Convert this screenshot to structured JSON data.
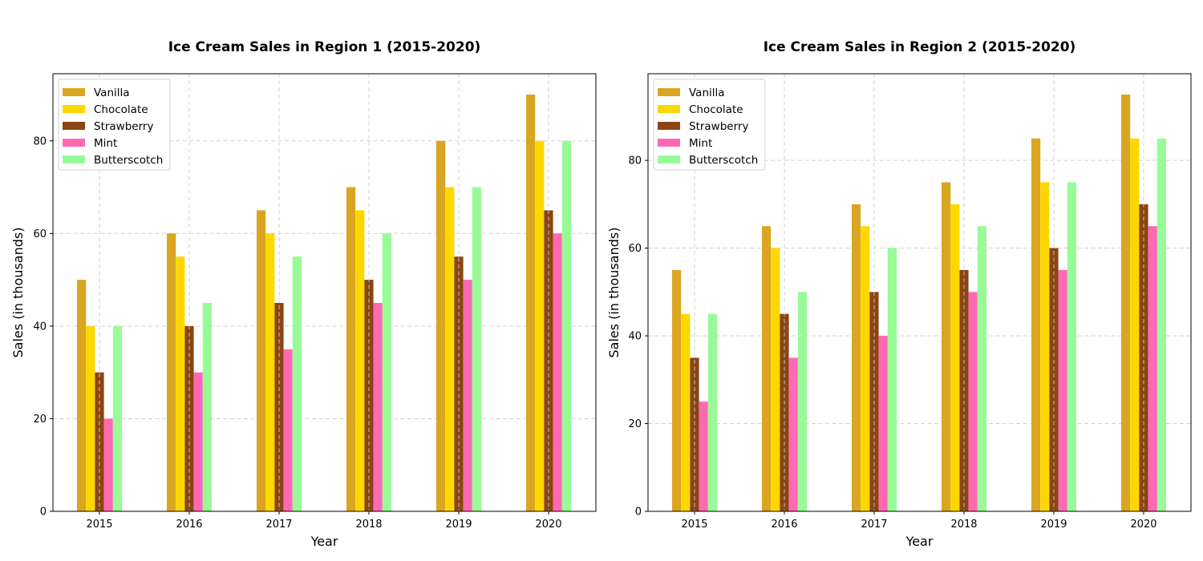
{
  "chart_data": [
    {
      "type": "bar",
      "title": "Ice Cream Sales in Region 1 (2015-2020)",
      "xlabel": "Year",
      "ylabel": "Sales (in thousands)",
      "categories": [
        "2015",
        "2016",
        "2017",
        "2018",
        "2019",
        "2020"
      ],
      "ylim": [
        0,
        94.5
      ],
      "yticks": [
        0,
        20,
        40,
        60,
        80
      ],
      "grid": true,
      "legend_position": "top-left",
      "series": [
        {
          "name": "Vanilla",
          "color": "#DAA520",
          "values": [
            50,
            60,
            65,
            70,
            80,
            90
          ]
        },
        {
          "name": "Chocolate",
          "color": "#FFD700",
          "values": [
            40,
            55,
            60,
            65,
            70,
            80
          ]
        },
        {
          "name": "Strawberry",
          "color": "#8B4513",
          "values": [
            30,
            40,
            45,
            50,
            55,
            65
          ]
        },
        {
          "name": "Mint",
          "color": "#FF69B4",
          "values": [
            20,
            30,
            35,
            45,
            50,
            60
          ]
        },
        {
          "name": "Butterscotch",
          "color": "#98FB98",
          "values": [
            40,
            45,
            55,
            60,
            70,
            80
          ]
        }
      ]
    },
    {
      "type": "bar",
      "title": "Ice Cream Sales in Region 2 (2015-2020)",
      "xlabel": "Year",
      "ylabel": "Sales (in thousands)",
      "categories": [
        "2015",
        "2016",
        "2017",
        "2018",
        "2019",
        "2020"
      ],
      "ylim": [
        0,
        99.75
      ],
      "yticks": [
        0,
        20,
        40,
        60,
        80
      ],
      "grid": true,
      "legend_position": "top-left",
      "series": [
        {
          "name": "Vanilla",
          "color": "#DAA520",
          "values": [
            55,
            65,
            70,
            75,
            85,
            95
          ]
        },
        {
          "name": "Chocolate",
          "color": "#FFD700",
          "values": [
            45,
            60,
            65,
            70,
            75,
            85
          ]
        },
        {
          "name": "Strawberry",
          "color": "#8B4513",
          "values": [
            35,
            45,
            50,
            55,
            60,
            70
          ]
        },
        {
          "name": "Mint",
          "color": "#FF69B4",
          "values": [
            25,
            35,
            40,
            50,
            55,
            65
          ]
        },
        {
          "name": "Butterscotch",
          "color": "#98FB98",
          "values": [
            45,
            50,
            60,
            65,
            75,
            85
          ]
        }
      ]
    }
  ]
}
